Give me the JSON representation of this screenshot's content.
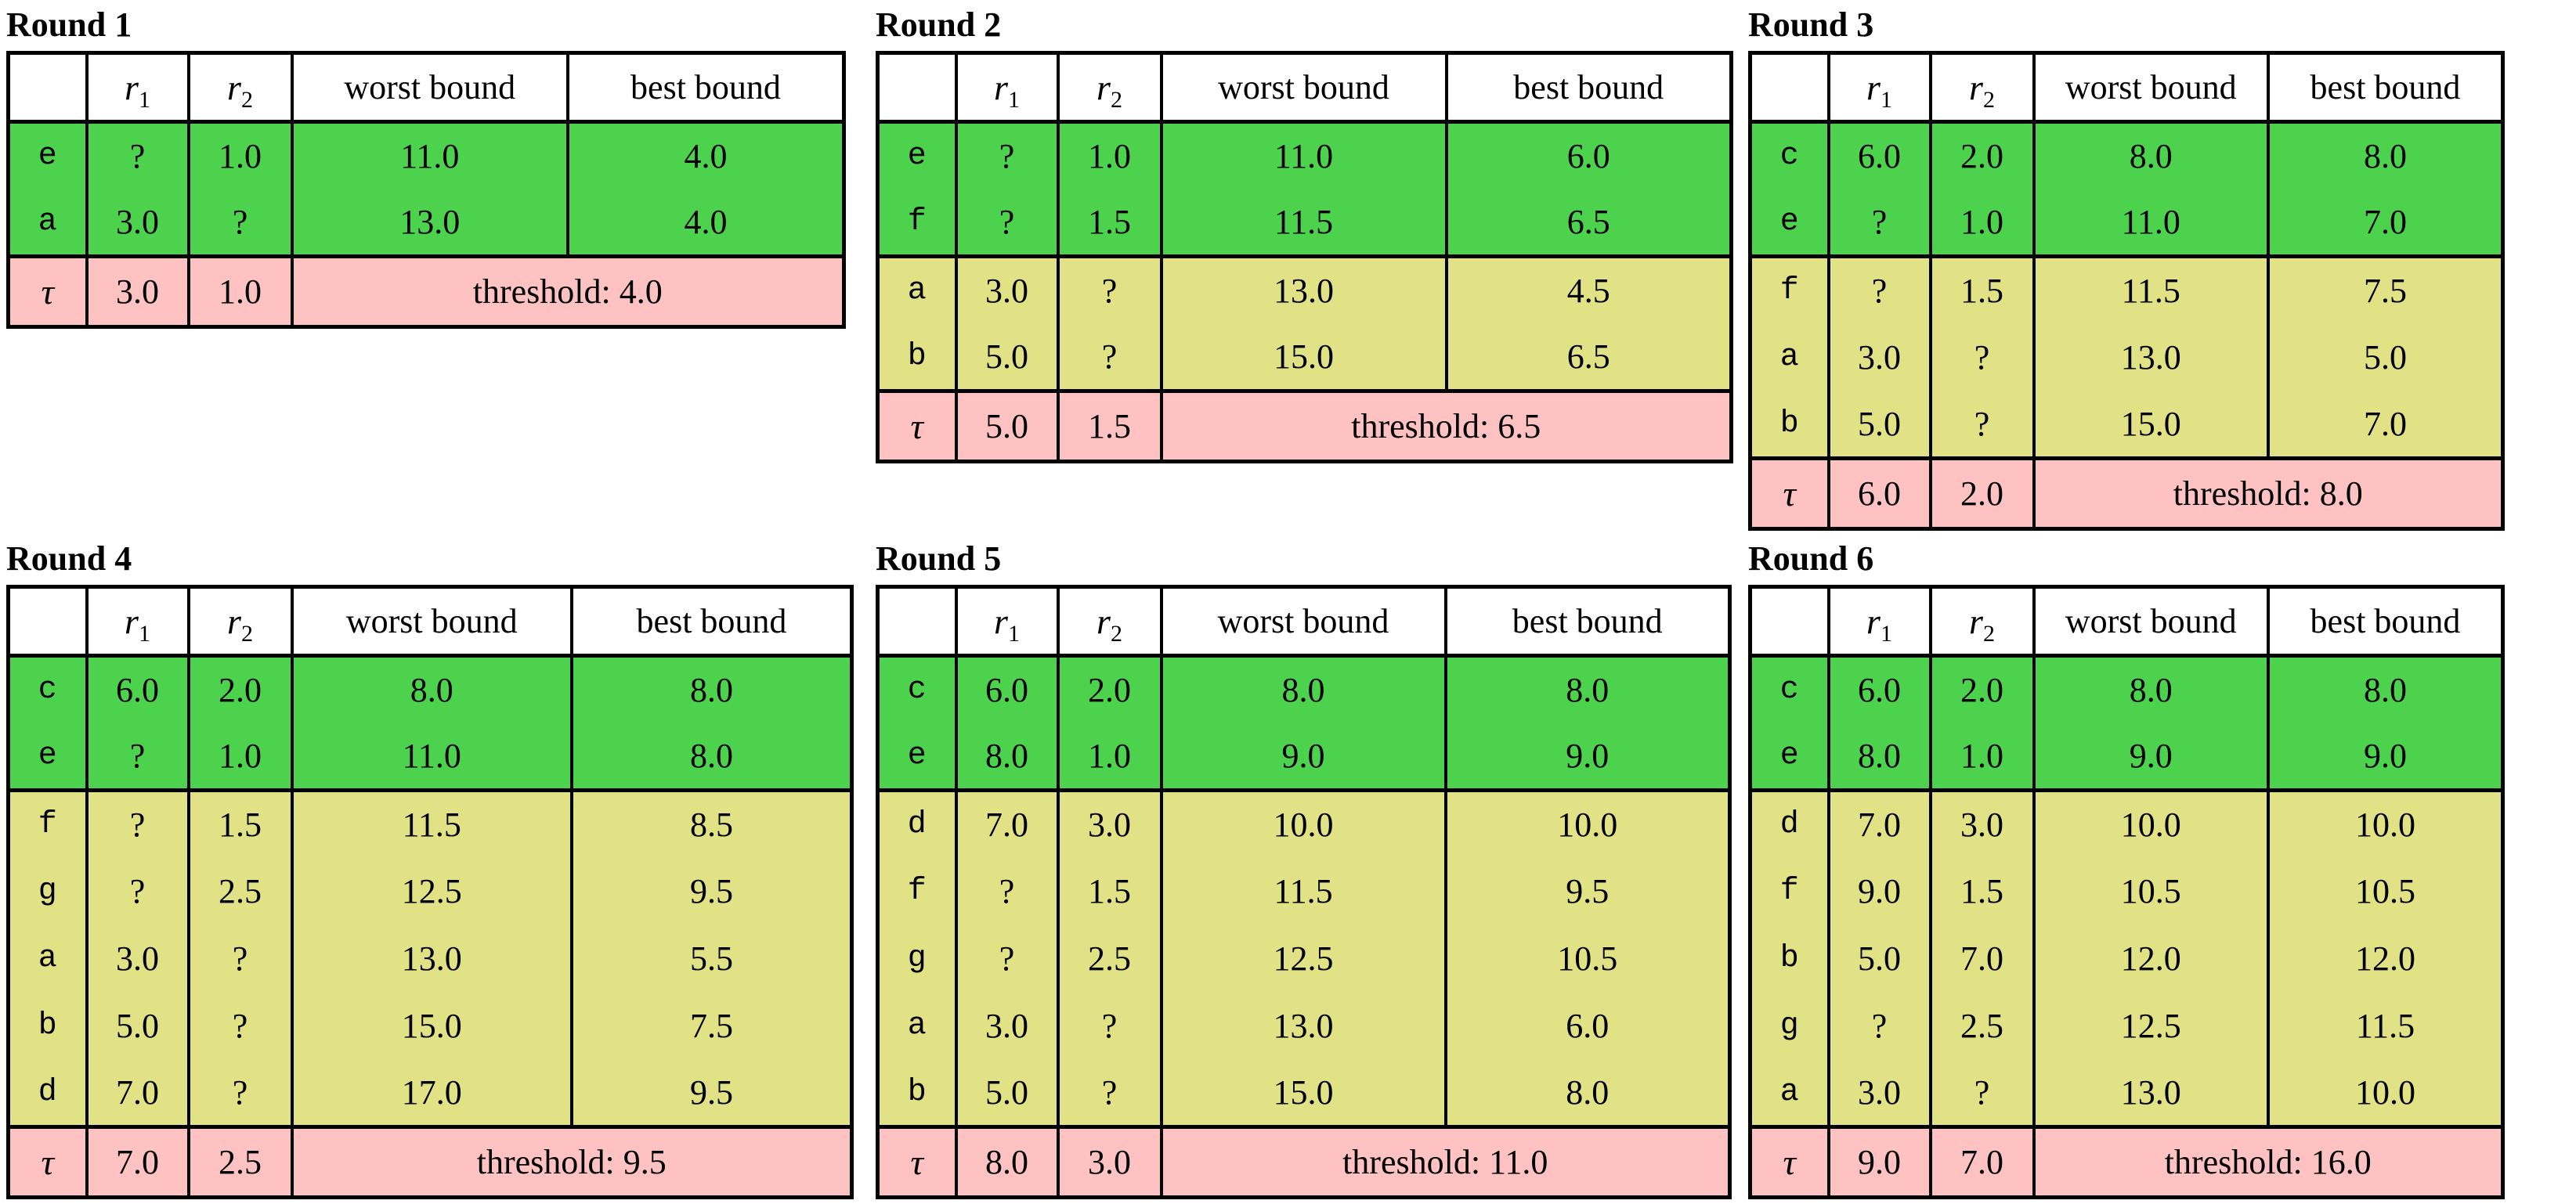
{
  "colors": {
    "green": "#4CD24C",
    "yellow": "#E1E185",
    "pink": "#FFC2C2",
    "border": "#000000",
    "background": "#FFFFFF"
  },
  "columns": {
    "r_base": "r",
    "r1_sub": "1",
    "r2_sub": "2",
    "worst": "worst bound",
    "best": "best bound"
  },
  "tau_label": "τ",
  "rounds": [
    {
      "title": "Round 1",
      "rows": [
        {
          "label": "e",
          "group": "green",
          "r1": "?",
          "r2": "1.0",
          "worst": "11.0",
          "best": "4.0"
        },
        {
          "label": "a",
          "group": "green",
          "r1": "3.0",
          "r2": "?",
          "worst": "13.0",
          "best": "4.0"
        }
      ],
      "tau": {
        "r1": "3.0",
        "r2": "1.0",
        "threshold": "threshold: 4.0"
      }
    },
    {
      "title": "Round 2",
      "rows": [
        {
          "label": "e",
          "group": "green",
          "r1": "?",
          "r2": "1.0",
          "worst": "11.0",
          "best": "6.0"
        },
        {
          "label": "f",
          "group": "green",
          "r1": "?",
          "r2": "1.5",
          "worst": "11.5",
          "best": "6.5"
        },
        {
          "label": "a",
          "group": "yellow",
          "r1": "3.0",
          "r2": "?",
          "worst": "13.0",
          "best": "4.5"
        },
        {
          "label": "b",
          "group": "yellow",
          "r1": "5.0",
          "r2": "?",
          "worst": "15.0",
          "best": "6.5"
        }
      ],
      "tau": {
        "r1": "5.0",
        "r2": "1.5",
        "threshold": "threshold: 6.5"
      }
    },
    {
      "title": "Round 3",
      "rows": [
        {
          "label": "c",
          "group": "green",
          "r1": "6.0",
          "r2": "2.0",
          "worst": "8.0",
          "best": "8.0"
        },
        {
          "label": "e",
          "group": "green",
          "r1": "?",
          "r2": "1.0",
          "worst": "11.0",
          "best": "7.0"
        },
        {
          "label": "f",
          "group": "yellow",
          "r1": "?",
          "r2": "1.5",
          "worst": "11.5",
          "best": "7.5"
        },
        {
          "label": "a",
          "group": "yellow",
          "r1": "3.0",
          "r2": "?",
          "worst": "13.0",
          "best": "5.0"
        },
        {
          "label": "b",
          "group": "yellow",
          "r1": "5.0",
          "r2": "?",
          "worst": "15.0",
          "best": "7.0"
        }
      ],
      "tau": {
        "r1": "6.0",
        "r2": "2.0",
        "threshold": "threshold: 8.0"
      }
    },
    {
      "title": "Round 4",
      "rows": [
        {
          "label": "c",
          "group": "green",
          "r1": "6.0",
          "r2": "2.0",
          "worst": "8.0",
          "best": "8.0"
        },
        {
          "label": "e",
          "group": "green",
          "r1": "?",
          "r2": "1.0",
          "worst": "11.0",
          "best": "8.0"
        },
        {
          "label": "f",
          "group": "yellow",
          "r1": "?",
          "r2": "1.5",
          "worst": "11.5",
          "best": "8.5"
        },
        {
          "label": "g",
          "group": "yellow",
          "r1": "?",
          "r2": "2.5",
          "worst": "12.5",
          "best": "9.5"
        },
        {
          "label": "a",
          "group": "yellow",
          "r1": "3.0",
          "r2": "?",
          "worst": "13.0",
          "best": "5.5"
        },
        {
          "label": "b",
          "group": "yellow",
          "r1": "5.0",
          "r2": "?",
          "worst": "15.0",
          "best": "7.5"
        },
        {
          "label": "d",
          "group": "yellow",
          "r1": "7.0",
          "r2": "?",
          "worst": "17.0",
          "best": "9.5"
        }
      ],
      "tau": {
        "r1": "7.0",
        "r2": "2.5",
        "threshold": "threshold: 9.5"
      }
    },
    {
      "title": "Round 5",
      "rows": [
        {
          "label": "c",
          "group": "green",
          "r1": "6.0",
          "r2": "2.0",
          "worst": "8.0",
          "best": "8.0"
        },
        {
          "label": "e",
          "group": "green",
          "r1": "8.0",
          "r2": "1.0",
          "worst": "9.0",
          "best": "9.0"
        },
        {
          "label": "d",
          "group": "yellow",
          "r1": "7.0",
          "r2": "3.0",
          "worst": "10.0",
          "best": "10.0"
        },
        {
          "label": "f",
          "group": "yellow",
          "r1": "?",
          "r2": "1.5",
          "worst": "11.5",
          "best": "9.5"
        },
        {
          "label": "g",
          "group": "yellow",
          "r1": "?",
          "r2": "2.5",
          "worst": "12.5",
          "best": "10.5"
        },
        {
          "label": "a",
          "group": "yellow",
          "r1": "3.0",
          "r2": "?",
          "worst": "13.0",
          "best": "6.0"
        },
        {
          "label": "b",
          "group": "yellow",
          "r1": "5.0",
          "r2": "?",
          "worst": "15.0",
          "best": "8.0"
        }
      ],
      "tau": {
        "r1": "8.0",
        "r2": "3.0",
        "threshold": "threshold: 11.0"
      }
    },
    {
      "title": "Round 6",
      "rows": [
        {
          "label": "c",
          "group": "green",
          "r1": "6.0",
          "r2": "2.0",
          "worst": "8.0",
          "best": "8.0"
        },
        {
          "label": "e",
          "group": "green",
          "r1": "8.0",
          "r2": "1.0",
          "worst": "9.0",
          "best": "9.0"
        },
        {
          "label": "d",
          "group": "yellow",
          "r1": "7.0",
          "r2": "3.0",
          "worst": "10.0",
          "best": "10.0"
        },
        {
          "label": "f",
          "group": "yellow",
          "r1": "9.0",
          "r2": "1.5",
          "worst": "10.5",
          "best": "10.5"
        },
        {
          "label": "b",
          "group": "yellow",
          "r1": "5.0",
          "r2": "7.0",
          "worst": "12.0",
          "best": "12.0"
        },
        {
          "label": "g",
          "group": "yellow",
          "r1": "?",
          "r2": "2.5",
          "worst": "12.5",
          "best": "11.5"
        },
        {
          "label": "a",
          "group": "yellow",
          "r1": "3.0",
          "r2": "?",
          "worst": "13.0",
          "best": "10.0"
        }
      ],
      "tau": {
        "r1": "9.0",
        "r2": "7.0",
        "threshold": "threshold: 16.0"
      }
    }
  ]
}
